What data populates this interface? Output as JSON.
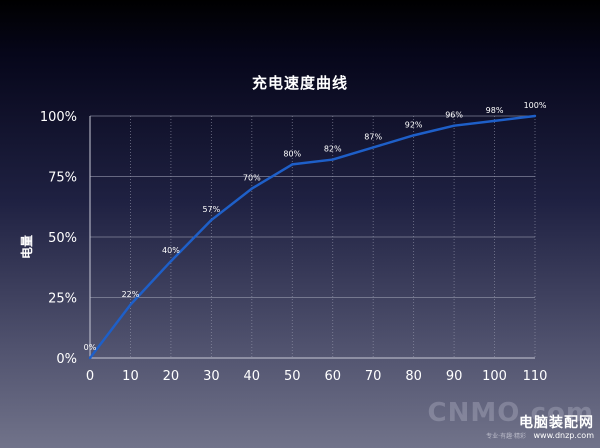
{
  "chart_data": {
    "type": "line",
    "title": "充电速度曲线",
    "xlabel": "",
    "ylabel": "电量",
    "x": [
      0,
      10,
      20,
      30,
      40,
      50,
      60,
      70,
      80,
      90,
      100,
      110
    ],
    "series": [
      {
        "values": [
          0,
          22,
          40,
          57,
          70,
          80,
          82,
          87,
          92,
          96,
          98,
          100
        ]
      }
    ],
    "data_labels": [
      "0%",
      "22%",
      "40%",
      "57%",
      "70%",
      "80%",
      "82%",
      "87%",
      "92%",
      "96%",
      "98%",
      "100%"
    ],
    "x_ticks": [
      "0",
      "10",
      "20",
      "30",
      "40",
      "50",
      "60",
      "70",
      "80",
      "90",
      "100",
      "110"
    ],
    "y_ticks": [
      0,
      25,
      50,
      75,
      100
    ],
    "y_tick_labels": [
      "0%",
      "25%",
      "50%",
      "75%",
      "100%"
    ],
    "xlim": [
      0,
      110
    ],
    "ylim": [
      0,
      100
    ],
    "grid": true,
    "colors": {
      "line": "#1e5fc8",
      "grid": "#9a9cb0",
      "text": "#ffffff"
    }
  },
  "watermark": {
    "logo": "CNMO.com",
    "text": "电脑装配网",
    "tagline": "专业·有趣·精彩",
    "url": "www.dnzp.com"
  }
}
